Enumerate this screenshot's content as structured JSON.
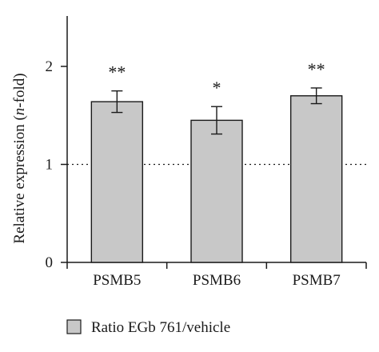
{
  "chart_data": {
    "type": "bar",
    "categories": [
      "PSMB5",
      "PSMB6",
      "PSMB7"
    ],
    "series": [
      {
        "name": "Ratio EGb 761/vehicle",
        "values": [
          1.64,
          1.45,
          1.7
        ],
        "errors": [
          0.11,
          0.14,
          0.08
        ],
        "color": "#c8c8c8"
      }
    ],
    "significance": [
      "**",
      "*",
      "**"
    ],
    "ylabel_prefix": "Relative expression (",
    "ylabel_italic": "n",
    "ylabel_suffix": "-fold)",
    "ylim": [
      0,
      2.5
    ],
    "yticks": [
      0,
      1,
      2
    ],
    "reference_line": 1,
    "grid": false,
    "legend_position": "bottom-left"
  }
}
